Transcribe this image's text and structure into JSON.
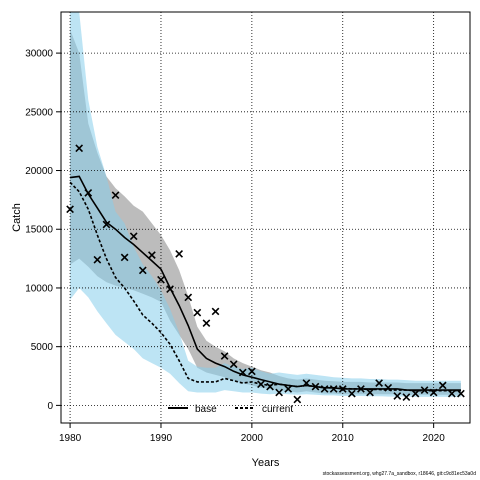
{
  "chart_data": {
    "type": "line",
    "title": "",
    "xlabel": "Years",
    "ylabel": "Catch",
    "xlim": [
      1979,
      2024
    ],
    "ylim": [
      -1500,
      33500
    ],
    "xticks": [
      1980,
      1990,
      2000,
      2010,
      2020
    ],
    "yticks": [
      0,
      5000,
      10000,
      15000,
      20000,
      25000,
      30000
    ],
    "grid": true,
    "legend_position": "bottom-center",
    "colors": {
      "base": "#000000",
      "base_band": "#a6a6a6",
      "current": "#000000",
      "current_band": "#87ceeb",
      "observed": "#000000"
    },
    "x": [
      1980,
      1981,
      1982,
      1983,
      1984,
      1985,
      1986,
      1987,
      1988,
      1989,
      1990,
      1991,
      1992,
      1993,
      1994,
      1995,
      1996,
      1997,
      1998,
      1999,
      2000,
      2001,
      2002,
      2003,
      2004,
      2005,
      2006,
      2007,
      2008,
      2009,
      2010,
      2011,
      2012,
      2013,
      2014,
      2015,
      2016,
      2017,
      2018,
      2019,
      2020,
      2021,
      2022,
      2023
    ],
    "series": [
      {
        "name": "base",
        "style": "solid",
        "values": [
          19400,
          19500,
          18000,
          16800,
          15600,
          15000,
          14300,
          13700,
          13000,
          12300,
          11600,
          10000,
          8500,
          6800,
          4800,
          4000,
          3600,
          3300,
          2900,
          2600,
          2400,
          2200,
          2000,
          1800,
          1700,
          1600,
          1700,
          1600,
          1500,
          1500,
          1400,
          1400,
          1400,
          1400,
          1400,
          1400,
          1400,
          1300,
          1300,
          1300,
          1300,
          1300,
          1300,
          1300
        ],
        "lower": [
          12000,
          12500,
          11800,
          11000,
          10500,
          10200,
          10000,
          9800,
          9500,
          9200,
          8800,
          7200,
          6000,
          4800,
          3200,
          2800,
          2600,
          2400,
          2100,
          1900,
          1700,
          1500,
          1400,
          1300,
          1200,
          1100,
          1200,
          1100,
          1000,
          1000,
          950,
          950,
          950,
          950,
          950,
          950,
          950,
          900,
          900,
          900,
          900,
          900,
          900,
          900
        ],
        "upper": [
          32000,
          30000,
          24000,
          21500,
          19500,
          18500,
          17800,
          17000,
          16500,
          15500,
          14500,
          13200,
          11500,
          9300,
          6700,
          5500,
          5000,
          4600,
          4000,
          3600,
          3300,
          3000,
          2800,
          2500,
          2300,
          2200,
          2300,
          2200,
          2100,
          2050,
          2000,
          2000,
          2000,
          1950,
          1950,
          1950,
          1950,
          1900,
          1900,
          1900,
          1900,
          1900,
          1900,
          1900
        ]
      },
      {
        "name": "current",
        "style": "dashed",
        "values": [
          19000,
          18200,
          16700,
          14500,
          12500,
          10900,
          10000,
          8900,
          7700,
          7000,
          6200,
          5200,
          3800,
          2300,
          2000,
          2000,
          2000,
          2300,
          2100,
          1900,
          2000,
          1800,
          1700,
          1800,
          1700,
          1600,
          1700,
          1600,
          1500,
          1500,
          1450,
          1400,
          1400,
          1350,
          1350,
          1300,
          1300,
          1300,
          1250,
          1250,
          1250,
          1250,
          1250,
          1250
        ],
        "lower": [
          9000,
          10000,
          9200,
          8000,
          7000,
          6000,
          5400,
          4800,
          4000,
          3600,
          3200,
          2700,
          1900,
          1200,
          1100,
          1100,
          1100,
          1300,
          1200,
          1100,
          1100,
          1000,
          950,
          1000,
          950,
          900,
          950,
          900,
          850,
          850,
          800,
          800,
          800,
          780,
          780,
          750,
          750,
          750,
          720,
          720,
          720,
          720,
          720,
          720
        ],
        "upper": [
          33500,
          33500,
          26000,
          22000,
          19500,
          16500,
          15500,
          13500,
          12000,
          11000,
          9800,
          8200,
          6200,
          3800,
          3300,
          3200,
          3200,
          3600,
          3300,
          3100,
          3200,
          2900,
          2700,
          2800,
          2700,
          2600,
          2700,
          2600,
          2500,
          2400,
          2350,
          2300,
          2300,
          2250,
          2250,
          2200,
          2200,
          2150,
          2100,
          2100,
          2100,
          2100,
          2100,
          2100
        ]
      }
    ],
    "observed": {
      "name": "observed catch",
      "marker": "x",
      "x": [
        1980,
        1981,
        1982,
        1983,
        1984,
        1985,
        1986,
        1987,
        1988,
        1989,
        1990,
        1991,
        1992,
        1993,
        1994,
        1995,
        1996,
        1997,
        1998,
        1999,
        2000,
        2001,
        2002,
        2003,
        2004,
        2005,
        2006,
        2007,
        2008,
        2009,
        2010,
        2011,
        2012,
        2013,
        2014,
        2015,
        2016,
        2017,
        2018,
        2019,
        2020,
        2021,
        2022,
        2023
      ],
      "y": [
        16700,
        21900,
        18100,
        12400,
        15400,
        17900,
        12600,
        14400,
        11500,
        12800,
        10700,
        9900,
        12900,
        9200,
        7900,
        7000,
        8000,
        4200,
        3500,
        2800,
        2900,
        1800,
        1600,
        1100,
        1400,
        500,
        1900,
        1600,
        1400,
        1400,
        1400,
        1000,
        1400,
        1100,
        1900,
        1500,
        800,
        700,
        1000,
        1300,
        1100,
        1700,
        1000,
        1000
      ]
    }
  },
  "legend": {
    "items": [
      {
        "label": "base",
        "style": "solid"
      },
      {
        "label": "current",
        "style": "dashed"
      }
    ]
  },
  "footnote": "stockassessment.org, whg27.7a_sandbox, r18646, git:c9c81ec53a0d"
}
